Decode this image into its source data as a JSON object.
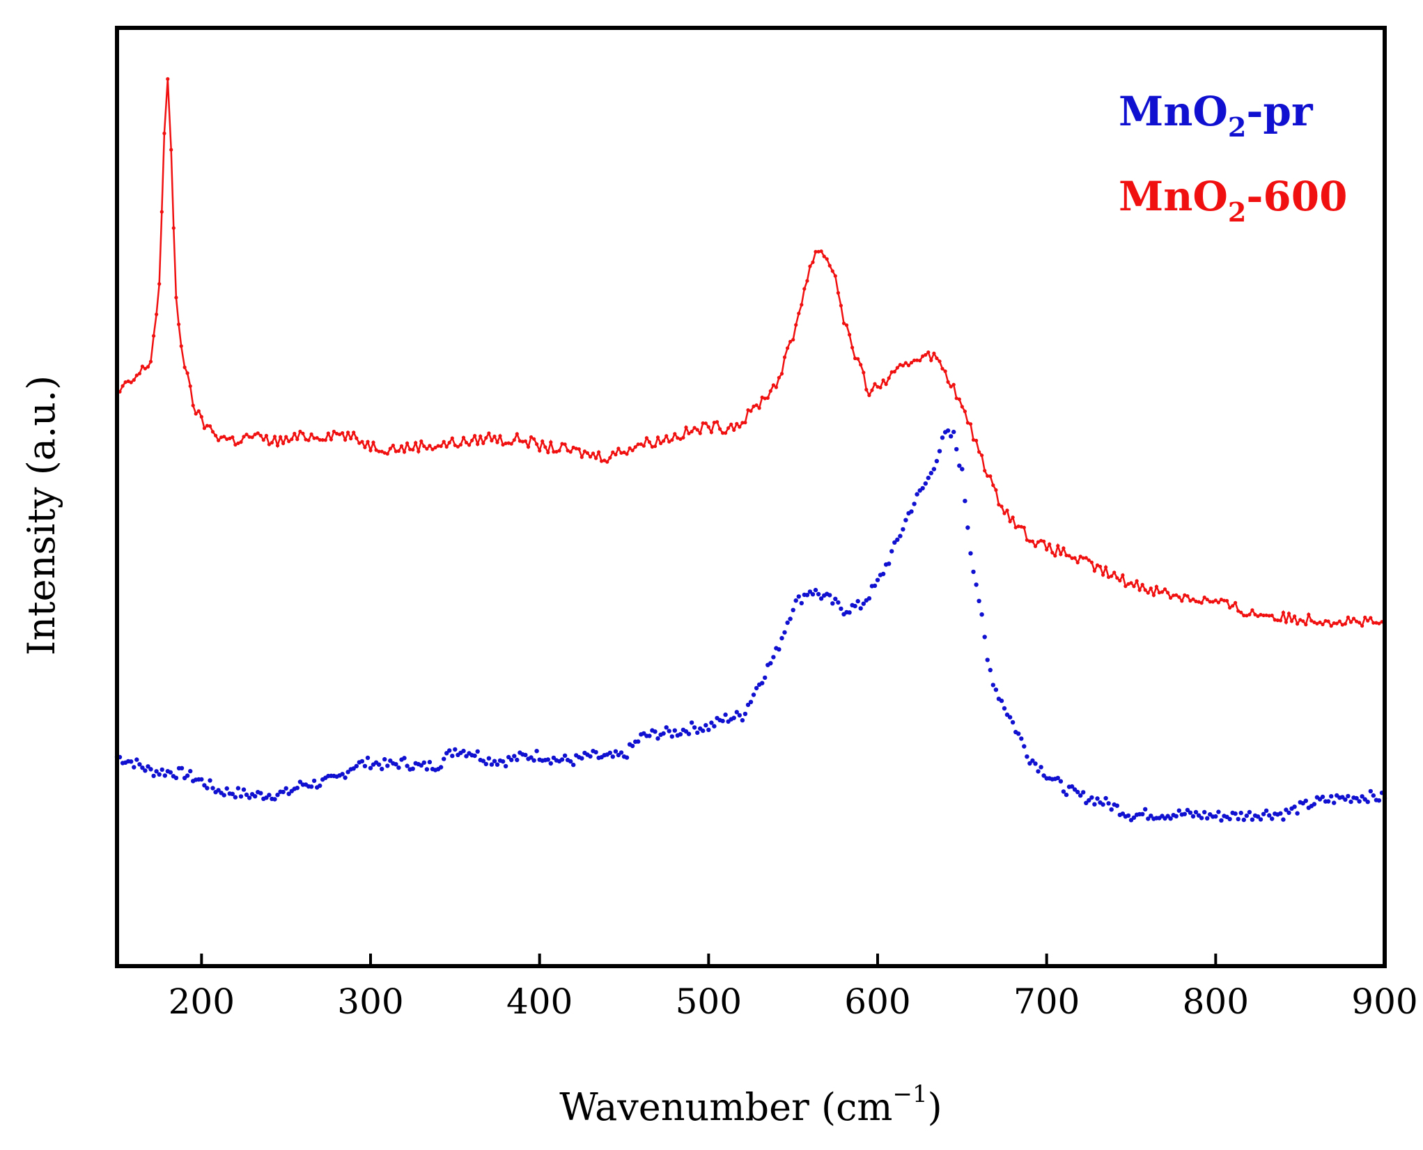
{
  "chart_data": {
    "type": "line",
    "xlabel": "Wavenumber (cm",
    "xlabel_sup": "−1",
    "xlabel_close": ")",
    "ylabel": "Intensity (a.u.)",
    "xlim": [
      150,
      900
    ],
    "ylim": [
      0,
      100
    ],
    "xticks": [
      200,
      300,
      400,
      500,
      600,
      700,
      800,
      900
    ],
    "y_tick_labels": false,
    "legend_position": "top-right",
    "series": [
      {
        "name": "MnO2-pr",
        "label_main": "MnO",
        "label_sub": "2",
        "label_suffix": "-pr",
        "color": "#1010d0",
        "style": "dots",
        "x": [
          150,
          160,
          170,
          180,
          190,
          200,
          205,
          210,
          220,
          230,
          240,
          250,
          260,
          270,
          280,
          290,
          300,
          310,
          320,
          330,
          340,
          350,
          360,
          370,
          380,
          390,
          400,
          410,
          420,
          430,
          440,
          450,
          460,
          470,
          480,
          490,
          500,
          510,
          520,
          530,
          540,
          550,
          560,
          570,
          580,
          590,
          600,
          610,
          620,
          630,
          640,
          645,
          650,
          655,
          660,
          665,
          670,
          680,
          690,
          700,
          710,
          720,
          730,
          740,
          750,
          760,
          770,
          780,
          790,
          800,
          810,
          820,
          830,
          840,
          850,
          860,
          870,
          880,
          890,
          900
        ],
        "y": [
          22.3,
          21.7,
          20.8,
          20.7,
          20.5,
          19.7,
          19.2,
          18.7,
          18.5,
          18.2,
          18.3,
          18.4,
          19.4,
          19.5,
          19.9,
          21.4,
          21.7,
          21.4,
          21.7,
          21.2,
          21.5,
          23.1,
          22.8,
          22.0,
          21.9,
          22.3,
          22.5,
          22.0,
          21.9,
          22.4,
          22.2,
          22.4,
          24.4,
          24.8,
          24.9,
          25.4,
          25.5,
          26.4,
          26.7,
          30.2,
          33.4,
          38.4,
          40.1,
          39.2,
          38.0,
          38.4,
          40.8,
          44.6,
          48.9,
          51.9,
          56.6,
          56.5,
          52.5,
          44.3,
          39.1,
          32.5,
          29.5,
          25.9,
          22.2,
          20.5,
          19.0,
          18.1,
          17.7,
          17.0,
          16.1,
          16.2,
          16.2,
          16.2,
          16.1,
          16.0,
          16.0,
          16.1,
          16.3,
          16.2,
          16.9,
          17.5,
          17.8,
          18.0,
          18.1,
          17.9
        ]
      },
      {
        "name": "MnO2-600",
        "label_main": "MnO",
        "label_sub": "2",
        "label_suffix": "-600",
        "color": "#f01010",
        "style": "line-markers",
        "x": [
          150,
          160,
          170,
          175,
          178,
          180,
          182,
          185,
          188,
          190,
          195,
          200,
          210,
          220,
          230,
          240,
          250,
          260,
          270,
          280,
          290,
          300,
          310,
          320,
          330,
          340,
          350,
          360,
          370,
          380,
          390,
          400,
          410,
          420,
          430,
          440,
          450,
          460,
          470,
          480,
          490,
          500,
          510,
          520,
          530,
          540,
          550,
          555,
          560,
          565,
          570,
          575,
          580,
          585,
          590,
          595,
          600,
          610,
          620,
          630,
          640,
          650,
          660,
          670,
          680,
          690,
          700,
          710,
          720,
          730,
          740,
          750,
          760,
          770,
          780,
          790,
          800,
          810,
          820,
          830,
          840,
          850,
          860,
          870,
          880,
          890,
          900
        ],
        "y": [
          61.0,
          62.5,
          64.5,
          72.5,
          88.5,
          94.0,
          87.0,
          71.0,
          66.5,
          64.0,
          60.0,
          58.0,
          56.5,
          56.0,
          56.5,
          56.0,
          56.0,
          56.5,
          56.5,
          56.8,
          56.3,
          55.5,
          55.2,
          55.2,
          55.5,
          55.5,
          55.8,
          55.9,
          56.4,
          56.0,
          56.2,
          55.4,
          55.2,
          54.9,
          54.5,
          54.3,
          55.0,
          55.7,
          56.0,
          56.5,
          57.0,
          57.5,
          57.4,
          58.0,
          60.0,
          62.0,
          67.0,
          71.0,
          74.5,
          76.5,
          75.5,
          73.5,
          69.0,
          66.0,
          63.5,
          61.2,
          61.8,
          63.0,
          64.5,
          65.5,
          63.5,
          59.5,
          55.0,
          50.2,
          47.5,
          45.7,
          44.5,
          44.1,
          43.2,
          42.4,
          41.5,
          40.8,
          40.3,
          39.8,
          39.4,
          39.1,
          38.8,
          38.3,
          37.6,
          37.5,
          37.1,
          37.0,
          37.0,
          36.8,
          36.8,
          36.6,
          36.4
        ]
      }
    ]
  }
}
